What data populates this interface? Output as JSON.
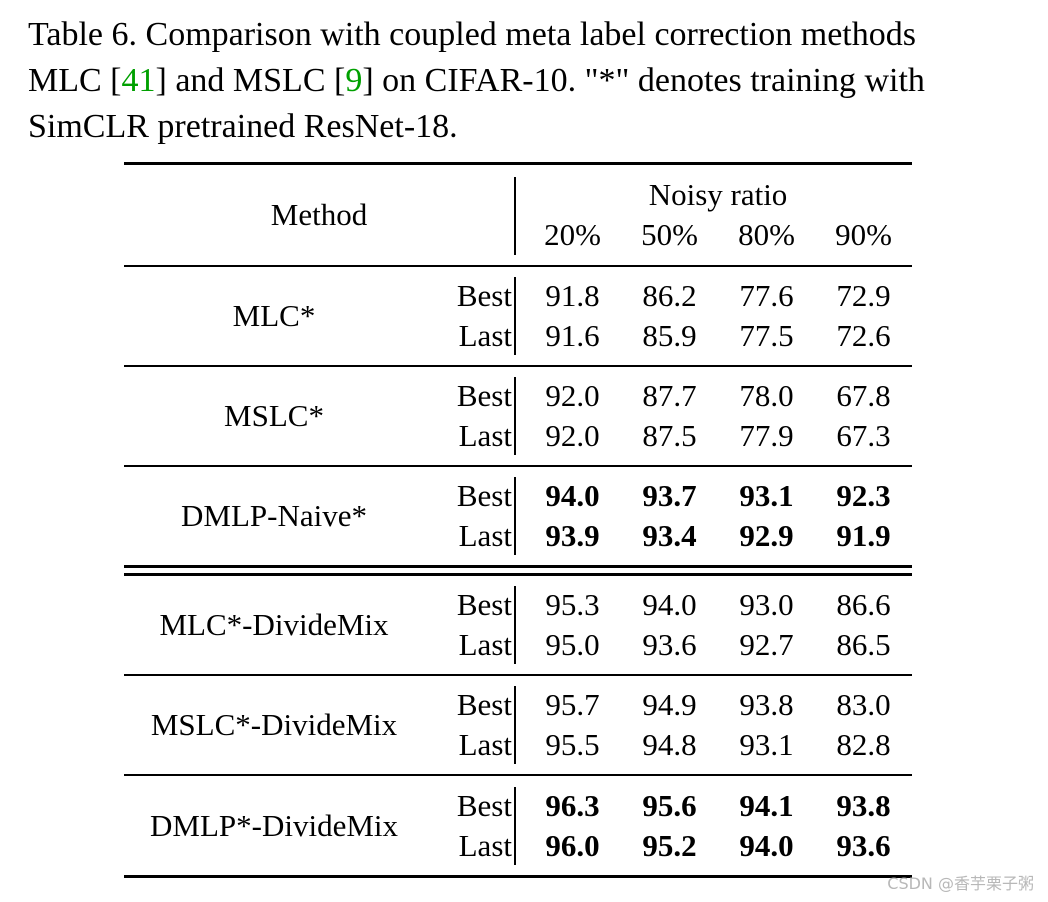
{
  "caption": {
    "line1": "Table 6. Comparison with coupled meta label correction methods",
    "line2_pre": "MLC [",
    "line2_ref1": "41",
    "line2_mid": "] and MSLC [",
    "line2_ref2": "9",
    "line2_post": "] on CIFAR-10. \"*\" denotes training with",
    "line3": "SimCLR pretrained ResNet-18."
  },
  "table": {
    "method_header": "Method",
    "noisy_header": "Noisy ratio",
    "ratios": [
      "20%",
      "50%",
      "80%",
      "90%"
    ],
    "groups": [
      {
        "method": "MLC*",
        "rows": [
          {
            "kind": "Best",
            "values": [
              "91.8",
              "86.2",
              "77.6",
              "72.9"
            ]
          },
          {
            "kind": "Last",
            "values": [
              "91.6",
              "85.9",
              "77.5",
              "72.6"
            ]
          }
        ]
      },
      {
        "method": "MSLC*",
        "rows": [
          {
            "kind": "Best",
            "values": [
              "92.0",
              "87.7",
              "78.0",
              "67.8"
            ]
          },
          {
            "kind": "Last",
            "values": [
              "92.0",
              "87.5",
              "77.9",
              "67.3"
            ]
          }
        ]
      },
      {
        "method": "DMLP-Naive*",
        "rows": [
          {
            "kind": "Best",
            "values": [
              "94.0",
              "93.7",
              "93.1",
              "92.3"
            ]
          },
          {
            "kind": "Last",
            "values": [
              "93.9",
              "93.4",
              "92.9",
              "91.9"
            ]
          }
        ]
      },
      {
        "method": "MLC*-DivideMix",
        "rows": [
          {
            "kind": "Best",
            "values": [
              "95.3",
              "94.0",
              "93.0",
              "86.6"
            ]
          },
          {
            "kind": "Last",
            "values": [
              "95.0",
              "93.6",
              "92.7",
              "86.5"
            ]
          }
        ]
      },
      {
        "method": "MSLC*-DivideMix",
        "rows": [
          {
            "kind": "Best",
            "values": [
              "95.7",
              "94.9",
              "93.8",
              "83.0"
            ]
          },
          {
            "kind": "Last",
            "values": [
              "95.5",
              "94.8",
              "93.1",
              "82.8"
            ]
          }
        ]
      },
      {
        "method": "DMLP*-DivideMix",
        "rows": [
          {
            "kind": "Best",
            "values": [
              "96.3",
              "95.6",
              "94.1",
              "93.8"
            ]
          },
          {
            "kind": "Last",
            "values": [
              "96.0",
              "95.2",
              "94.0",
              "93.6"
            ]
          }
        ]
      }
    ]
  },
  "watermark": "CSDN @香芋栗子粥"
}
